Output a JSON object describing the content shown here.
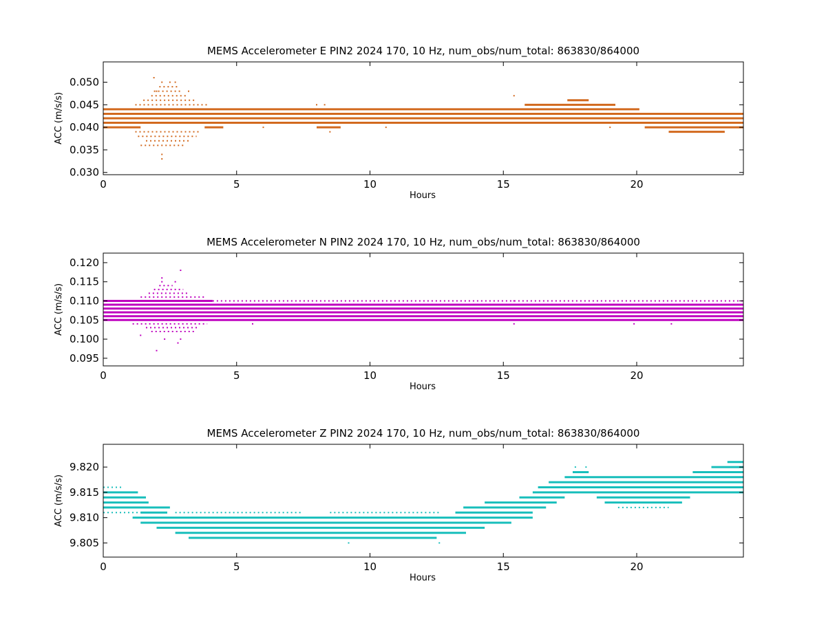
{
  "chart_data": [
    {
      "type": "scatter",
      "title": "MEMS Accelerometer E PIN2 2024 170, 10 Hz, num_obs/num_total: 863830/864000",
      "xlabel": "Hours",
      "ylabel": "ACC (m/s/s)",
      "xlim": [
        0,
        24
      ],
      "ylim": [
        0.0295,
        0.0545
      ],
      "xticks": [
        0,
        5,
        10,
        15,
        20
      ],
      "xtick_labels": [
        "0",
        "5",
        "10",
        "15",
        "20"
      ],
      "yticks": [
        0.03,
        0.035,
        0.04,
        0.045,
        0.05
      ],
      "ytick_labels": [
        "0.030",
        "0.035",
        "0.040",
        "0.045",
        "0.050"
      ],
      "color": "#d2691e",
      "grid": false,
      "series": [
        {
          "bands": [
            {
              "y": 0.04,
              "ranges": [
                [
                  0.0,
                  1.4
                ],
                [
                  3.8,
                  4.5
                ],
                [
                  8.0,
                  8.9
                ],
                [
                  20.3,
                  24.0
                ]
              ],
              "density": "dense"
            },
            {
              "y": 0.041,
              "ranges": [
                [
                  0.0,
                  24.0
                ]
              ],
              "density": "dense"
            },
            {
              "y": 0.042,
              "ranges": [
                [
                  0.0,
                  24.0
                ]
              ],
              "density": "dense"
            },
            {
              "y": 0.043,
              "ranges": [
                [
                  0.0,
                  24.0
                ]
              ],
              "density": "dense"
            },
            {
              "y": 0.044,
              "ranges": [
                [
                  0.0,
                  20.1
                ]
              ],
              "density": "dense"
            },
            {
              "y": 0.045,
              "ranges": [
                [
                  15.8,
                  19.2
                ]
              ],
              "density": "dense"
            },
            {
              "y": 0.046,
              "ranges": [
                [
                  17.4,
                  18.2
                ]
              ],
              "density": "dense"
            },
            {
              "y": 0.039,
              "ranges": [
                [
                  21.2,
                  23.3
                ]
              ],
              "density": "dense"
            },
            {
              "y": 0.039,
              "ranges": [
                [
                  1.2,
                  3.6
                ]
              ],
              "density": "sparse"
            },
            {
              "y": 0.038,
              "ranges": [
                [
                  1.3,
                  3.5
                ]
              ],
              "density": "sparse"
            },
            {
              "y": 0.037,
              "ranges": [
                [
                  1.6,
                  3.2
                ]
              ],
              "density": "sparse"
            },
            {
              "y": 0.036,
              "ranges": [
                [
                  1.4,
                  3.0
                ]
              ],
              "density": "sparse"
            },
            {
              "y": 0.045,
              "ranges": [
                [
                  1.2,
                  3.9
                ]
              ],
              "density": "sparse"
            },
            {
              "y": 0.046,
              "ranges": [
                [
                  1.5,
                  3.5
                ]
              ],
              "density": "sparse"
            },
            {
              "y": 0.047,
              "ranges": [
                [
                  1.8,
                  3.1
                ]
              ],
              "density": "sparse"
            },
            {
              "y": 0.048,
              "ranges": [
                [
                  1.9,
                  2.9
                ]
              ],
              "density": "sparse"
            },
            {
              "y": 0.049,
              "ranges": [
                [
                  2.1,
                  2.8
                ]
              ],
              "density": "sparse"
            }
          ],
          "points": [
            [
              2.2,
              0.034
            ],
            [
              2.2,
              0.033
            ],
            [
              1.9,
              0.051
            ],
            [
              2.2,
              0.05
            ],
            [
              2.5,
              0.05
            ],
            [
              2.7,
              0.05
            ],
            [
              2.0,
              0.048
            ],
            [
              3.2,
              0.048
            ],
            [
              15.4,
              0.047
            ],
            [
              8.5,
              0.039
            ],
            [
              8.3,
              0.045
            ],
            [
              8.0,
              0.045
            ],
            [
              6.0,
              0.04
            ],
            [
              10.6,
              0.04
            ],
            [
              19.0,
              0.04
            ]
          ]
        }
      ]
    },
    {
      "type": "scatter",
      "title": "MEMS Accelerometer N PIN2 2024 170, 10 Hz, num_obs/num_total: 863830/864000",
      "xlabel": "Hours",
      "ylabel": "ACC (m/s/s)",
      "xlim": [
        0,
        24
      ],
      "ylim": [
        0.093,
        0.1225
      ],
      "xticks": [
        0,
        5,
        10,
        15,
        20
      ],
      "xtick_labels": [
        "0",
        "5",
        "10",
        "15",
        "20"
      ],
      "yticks": [
        0.095,
        0.1,
        0.105,
        0.11,
        0.115,
        0.12
      ],
      "ytick_labels": [
        "0.095",
        "0.100",
        "0.105",
        "0.110",
        "0.115",
        "0.120"
      ],
      "color": "#bf00bf",
      "grid": false,
      "series": [
        {
          "bands": [
            {
              "y": 0.106,
              "ranges": [
                [
                  0.0,
                  24.0
                ]
              ],
              "density": "dense"
            },
            {
              "y": 0.107,
              "ranges": [
                [
                  0.0,
                  24.0
                ]
              ],
              "density": "dense"
            },
            {
              "y": 0.108,
              "ranges": [
                [
                  0.0,
                  24.0
                ]
              ],
              "density": "dense"
            },
            {
              "y": 0.109,
              "ranges": [
                [
                  0.0,
                  24.0
                ]
              ],
              "density": "dense"
            },
            {
              "y": 0.11,
              "ranges": [
                [
                  0.0,
                  4.1
                ]
              ],
              "density": "dense"
            },
            {
              "y": 0.105,
              "ranges": [
                [
                  0.0,
                  24.0
                ]
              ],
              "density": "dense"
            },
            {
              "y": 0.11,
              "ranges": [
                [
                  4.1,
                  24.0
                ]
              ],
              "density": "sparse"
            },
            {
              "y": 0.104,
              "ranges": [
                [
                  1.1,
                  3.9
                ]
              ],
              "density": "sparse"
            },
            {
              "y": 0.103,
              "ranges": [
                [
                  1.6,
                  3.6
                ]
              ],
              "density": "sparse"
            },
            {
              "y": 0.102,
              "ranges": [
                [
                  1.8,
                  3.5
                ]
              ],
              "density": "sparse"
            },
            {
              "y": 0.111,
              "ranges": [
                [
                  1.4,
                  3.8
                ]
              ],
              "density": "sparse"
            },
            {
              "y": 0.112,
              "ranges": [
                [
                  1.7,
                  3.2
                ]
              ],
              "density": "sparse"
            },
            {
              "y": 0.113,
              "ranges": [
                [
                  1.9,
                  3.0
                ]
              ],
              "density": "sparse"
            },
            {
              "y": 0.114,
              "ranges": [
                [
                  2.1,
                  2.6
                ]
              ],
              "density": "sparse"
            }
          ],
          "points": [
            [
              2.0,
              0.097
            ],
            [
              2.8,
              0.099
            ],
            [
              2.9,
              0.1
            ],
            [
              2.3,
              0.1
            ],
            [
              1.4,
              0.101
            ],
            [
              2.9,
              0.118
            ],
            [
              2.2,
              0.116
            ],
            [
              2.2,
              0.115
            ],
            [
              2.7,
              0.115
            ],
            [
              15.4,
              0.104
            ],
            [
              5.6,
              0.104
            ],
            [
              21.3,
              0.104
            ],
            [
              19.9,
              0.104
            ],
            [
              15.4,
              0.11
            ]
          ]
        }
      ]
    },
    {
      "type": "scatter",
      "title": "MEMS Accelerometer Z PIN2 2024 170, 10 Hz, num_obs/num_total: 863830/864000",
      "xlabel": "Hours",
      "ylabel": "ACC (m/s/s)",
      "xlim": [
        0,
        24
      ],
      "ylim": [
        9.8022,
        9.8245
      ],
      "xticks": [
        0,
        5,
        10,
        15,
        20
      ],
      "xtick_labels": [
        "0",
        "5",
        "10",
        "15",
        "20"
      ],
      "yticks": [
        9.805,
        9.81,
        9.815,
        9.82
      ],
      "ytick_labels": [
        "9.805",
        "9.810",
        "9.815",
        "9.820"
      ],
      "color": "#17bebb",
      "grid": false,
      "series": [
        {
          "bands": [
            {
              "y": 9.816,
              "ranges": [
                [
                  0.0,
                  0.7
                ]
              ],
              "density": "sparse"
            },
            {
              "y": 9.815,
              "ranges": [
                [
                  0.0,
                  1.3
                ]
              ],
              "density": "dense"
            },
            {
              "y": 9.814,
              "ranges": [
                [
                  0.0,
                  1.6
                ]
              ],
              "density": "dense"
            },
            {
              "y": 9.813,
              "ranges": [
                [
                  0.0,
                  1.7
                ]
              ],
              "density": "dense"
            },
            {
              "y": 9.812,
              "ranges": [
                [
                  0.0,
                  2.5
                ]
              ],
              "density": "dense"
            },
            {
              "y": 9.811,
              "ranges": [
                [
                  0.0,
                  1.7
                ]
              ],
              "density": "sparse"
            },
            {
              "y": 9.811,
              "ranges": [
                [
                  1.4,
                  2.4
                ]
              ],
              "density": "dense"
            },
            {
              "y": 9.81,
              "ranges": [
                [
                  1.1,
                  16.1
                ]
              ],
              "density": "dense"
            },
            {
              "y": 9.809,
              "ranges": [
                [
                  1.4,
                  15.3
                ]
              ],
              "density": "dense"
            },
            {
              "y": 9.808,
              "ranges": [
                [
                  2.0,
                  14.3
                ]
              ],
              "density": "dense"
            },
            {
              "y": 9.807,
              "ranges": [
                [
                  2.7,
                  13.6
                ]
              ],
              "density": "dense"
            },
            {
              "y": 9.806,
              "ranges": [
                [
                  3.2,
                  12.5
                ]
              ],
              "density": "dense"
            },
            {
              "y": 9.811,
              "ranges": [
                [
                  2.7,
                  7.5
                ],
                [
                  8.5,
                  12.6
                ]
              ],
              "density": "sparse"
            },
            {
              "y": 9.811,
              "ranges": [
                [
                  13.2,
                  16.1
                ]
              ],
              "density": "dense"
            },
            {
              "y": 9.812,
              "ranges": [
                [
                  13.5,
                  16.6
                ]
              ],
              "density": "dense"
            },
            {
              "y": 9.813,
              "ranges": [
                [
                  14.3,
                  17.0
                ]
              ],
              "density": "dense"
            },
            {
              "y": 9.814,
              "ranges": [
                [
                  15.6,
                  17.3
                ]
              ],
              "density": "dense"
            },
            {
              "y": 9.815,
              "ranges": [
                [
                  16.1,
                  24.0
                ]
              ],
              "density": "dense"
            },
            {
              "y": 9.816,
              "ranges": [
                [
                  16.3,
                  24.0
                ]
              ],
              "density": "dense"
            },
            {
              "y": 9.817,
              "ranges": [
                [
                  16.7,
                  24.0
                ]
              ],
              "density": "dense"
            },
            {
              "y": 9.818,
              "ranges": [
                [
                  17.3,
                  24.0
                ]
              ],
              "density": "dense"
            },
            {
              "y": 9.819,
              "ranges": [
                [
                  17.6,
                  18.2
                ],
                [
                  22.1,
                  24.0
                ]
              ],
              "density": "dense"
            },
            {
              "y": 9.82,
              "ranges": [
                [
                  22.8,
                  24.0
                ]
              ],
              "density": "dense"
            },
            {
              "y": 9.821,
              "ranges": [
                [
                  23.4,
                  24.0
                ]
              ],
              "density": "dense"
            },
            {
              "y": 9.814,
              "ranges": [
                [
                  18.5,
                  22.0
                ]
              ],
              "density": "dense"
            },
            {
              "y": 9.813,
              "ranges": [
                [
                  18.8,
                  21.7
                ]
              ],
              "density": "dense"
            },
            {
              "y": 9.812,
              "ranges": [
                [
                  19.3,
                  21.2
                ]
              ],
              "density": "sparse"
            }
          ],
          "points": [
            [
              9.2,
              9.805
            ],
            [
              12.6,
              9.805
            ],
            [
              17.7,
              9.82
            ],
            [
              18.1,
              9.82
            ],
            [
              23.5,
              9.816
            ],
            [
              23.2,
              9.816
            ]
          ]
        }
      ]
    }
  ]
}
